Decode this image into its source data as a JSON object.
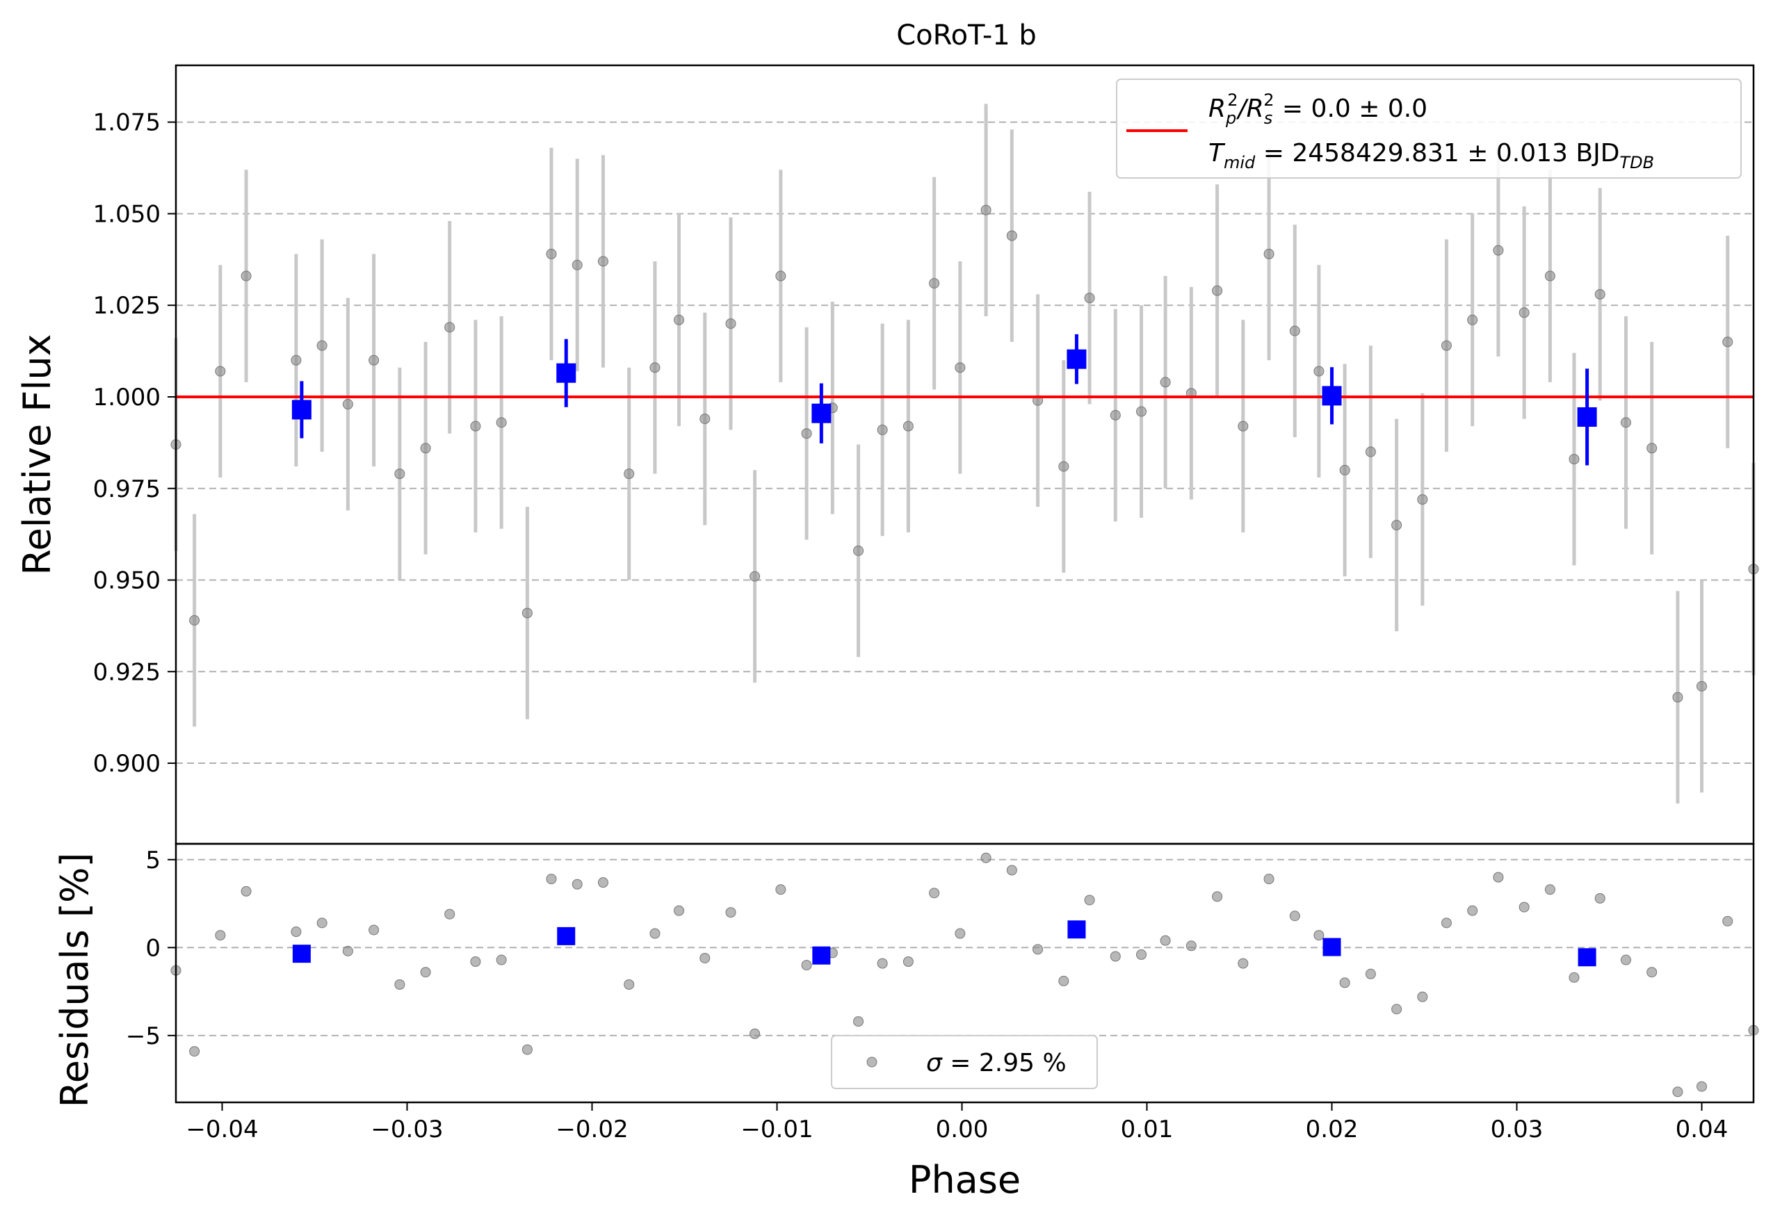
{
  "chart_data": [
    {
      "type": "scatter",
      "title": "CoRoT-1 b",
      "xlabel": "",
      "ylabel": "Relative Flux",
      "xlim": [
        -0.0425,
        0.0428
      ],
      "ylim": [
        0.878,
        1.0905
      ],
      "yticks": [
        "0.900",
        "0.925",
        "0.950",
        "0.975",
        "1.000",
        "1.025",
        "1.050",
        "1.075"
      ],
      "grid": "horizontal-dashed",
      "model": {
        "name": "R_p^2/R_s^2 = 0.0 ± 0.0",
        "value": 1.0,
        "color": "#ff0000"
      },
      "legend": {
        "placement": "top-right",
        "line1": {
          "main": "R",
          "sub1": "p",
          "sup1": "2",
          "mid": "/R",
          "sub2": "s",
          "sup2": "2",
          "rest": " = 0.0 ± 0.0"
        },
        "line2": {
          "main": "T",
          "sub": "mid",
          "rest": " = 2458429.831 ± 0.013 BJD",
          "sub2": "TDB"
        }
      },
      "raw_series": {
        "color": "#888888",
        "err_color": "#c8c8c8",
        "x": [
          -0.0425,
          -0.0415,
          -0.0401,
          -0.0387,
          -0.036,
          -0.0346,
          -0.0332,
          -0.0318,
          -0.0304,
          -0.029,
          -0.0277,
          -0.0263,
          -0.0249,
          -0.0235,
          -0.0222,
          -0.0208,
          -0.0194,
          -0.018,
          -0.0166,
          -0.0153,
          -0.0139,
          -0.0125,
          -0.0112,
          -0.0098,
          -0.0084,
          -0.007,
          -0.0056,
          -0.0043,
          -0.0029,
          -0.0015,
          -0.0001,
          0.0013,
          0.0027,
          0.0041,
          0.0055,
          0.0069,
          0.0083,
          0.0097,
          0.011,
          0.0124,
          0.0138,
          0.0152,
          0.0166,
          0.018,
          0.0193,
          0.0207,
          0.0221,
          0.0235,
          0.0249,
          0.0262,
          0.0276,
          0.029,
          0.0304,
          0.0318,
          0.0331,
          0.0345,
          0.0359,
          0.0373,
          0.0387,
          0.04,
          0.0414,
          0.0428
        ],
        "y": [
          0.987,
          0.939,
          1.007,
          1.033,
          1.01,
          1.014,
          0.998,
          1.01,
          0.979,
          0.986,
          1.019,
          0.992,
          0.993,
          0.941,
          1.039,
          1.036,
          1.037,
          0.979,
          1.008,
          1.021,
          0.994,
          1.02,
          0.951,
          1.033,
          0.99,
          0.997,
          0.958,
          0.991,
          0.992,
          1.031,
          1.008,
          1.051,
          1.044,
          0.999,
          0.981,
          1.027,
          0.995,
          0.996,
          1.004,
          1.001,
          1.029,
          0.992,
          1.039,
          1.018,
          1.007,
          0.98,
          0.985,
          0.965,
          0.972,
          1.014,
          1.021,
          1.04,
          1.023,
          1.033,
          0.983,
          1.028,
          0.993,
          0.986,
          0.918,
          0.921,
          1.015,
          0.953
        ],
        "yerr": 0.029
      },
      "binned_series": {
        "color": "#0000ff",
        "x": [
          -0.0357,
          -0.0214,
          -0.0076,
          0.0062,
          0.02,
          0.0338
        ],
        "y": [
          0.9965,
          1.0065,
          0.9955,
          1.0103,
          1.0003,
          0.9945
        ],
        "yerr": [
          0.0078,
          0.0093,
          0.0082,
          0.0068,
          0.0078,
          0.0132
        ]
      }
    },
    {
      "type": "scatter",
      "title": "",
      "xlabel": "Phase",
      "ylabel": "Residuals [%]",
      "xlim": [
        -0.0425,
        0.0428
      ],
      "ylim": [
        -8.8,
        5.9
      ],
      "xticks": [
        "−0.04",
        "−0.03",
        "−0.02",
        "−0.01",
        "0.00",
        "0.01",
        "0.02",
        "0.03",
        "0.04"
      ],
      "xtick_values": [
        -0.04,
        -0.03,
        -0.02,
        -0.01,
        0.0,
        0.01,
        0.02,
        0.03,
        0.04
      ],
      "yticks": [
        "−5",
        "0",
        "5"
      ],
      "ytick_values": [
        -5,
        0,
        5
      ],
      "grid": "horizontal-dashed",
      "legend": {
        "placement": "lower-center",
        "sigma_symbol": "σ",
        "sigma_text": " = 2.95 %"
      },
      "raw_series": {
        "color": "#888888",
        "x": [
          -0.0425,
          -0.0415,
          -0.0401,
          -0.0387,
          -0.036,
          -0.0346,
          -0.0332,
          -0.0318,
          -0.0304,
          -0.029,
          -0.0277,
          -0.0263,
          -0.0249,
          -0.0235,
          -0.0222,
          -0.0208,
          -0.0194,
          -0.018,
          -0.0166,
          -0.0153,
          -0.0139,
          -0.0125,
          -0.0112,
          -0.0098,
          -0.0084,
          -0.007,
          -0.0056,
          -0.0043,
          -0.0029,
          -0.0015,
          -0.0001,
          0.0013,
          0.0027,
          0.0041,
          0.0055,
          0.0069,
          0.0083,
          0.0097,
          0.011,
          0.0124,
          0.0138,
          0.0152,
          0.0166,
          0.018,
          0.0193,
          0.0207,
          0.0221,
          0.0235,
          0.0249,
          0.0262,
          0.0276,
          0.029,
          0.0304,
          0.0318,
          0.0331,
          0.0345,
          0.0359,
          0.0373,
          0.0387,
          0.04,
          0.0414,
          0.0428
        ],
        "y": [
          -1.3,
          -5.9,
          0.7,
          3.2,
          0.9,
          1.4,
          -0.2,
          1.0,
          -2.1,
          -1.4,
          1.9,
          -0.8,
          -0.7,
          -5.8,
          3.9,
          3.6,
          3.7,
          -2.1,
          0.8,
          2.1,
          -0.6,
          2.0,
          -4.9,
          3.3,
          -1.0,
          -0.3,
          -4.2,
          -0.9,
          -0.8,
          3.1,
          0.8,
          5.1,
          4.4,
          -0.1,
          -1.9,
          2.7,
          -0.5,
          -0.4,
          0.4,
          0.1,
          2.9,
          -0.9,
          3.9,
          1.8,
          0.7,
          -2.0,
          -1.5,
          -3.5,
          -2.8,
          1.4,
          2.1,
          4.0,
          2.3,
          3.3,
          -1.7,
          2.8,
          -0.7,
          -1.4,
          -8.2,
          -7.9,
          1.5,
          -4.7
        ]
      },
      "binned_series": {
        "color": "#0000ff",
        "x": [
          -0.0357,
          -0.0214,
          -0.0076,
          0.0062,
          0.02,
          0.0338
        ],
        "y": [
          -0.35,
          0.65,
          -0.45,
          1.03,
          0.03,
          -0.55
        ]
      }
    }
  ]
}
